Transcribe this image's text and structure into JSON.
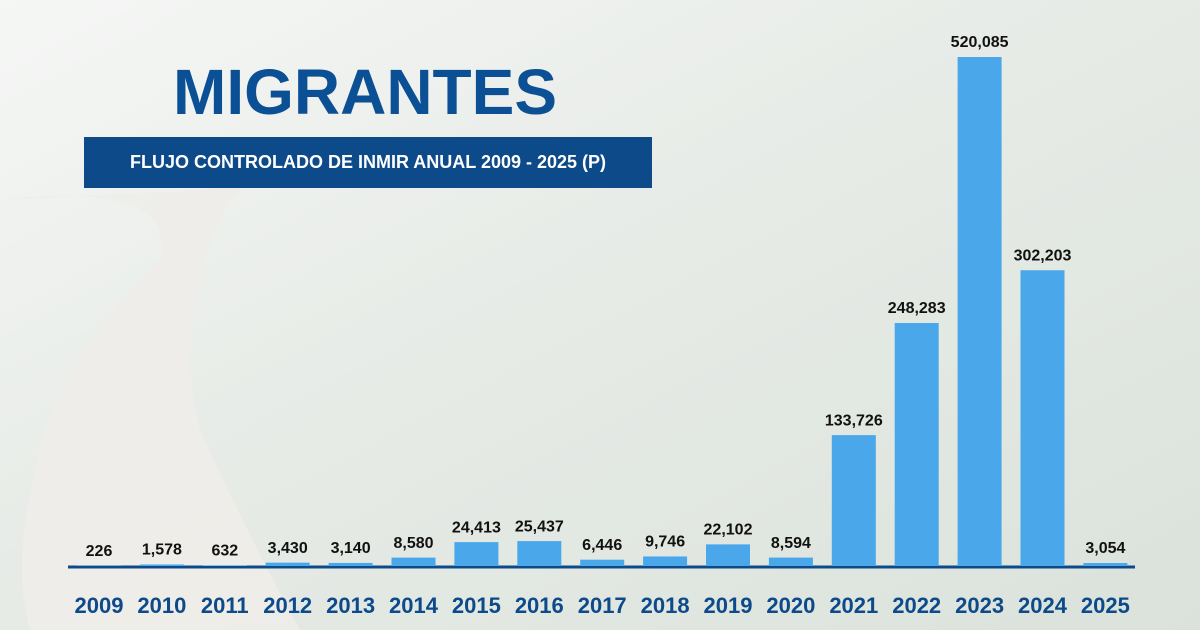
{
  "chart_data": {
    "type": "bar",
    "title": "MIGRANTES",
    "subtitle": "FLUJO CONTROLADO DE INMIR ANUAL 2009 - 2025 (P)",
    "categories": [
      "2009",
      "2010",
      "2011",
      "2012",
      "2013",
      "2014",
      "2015",
      "2016",
      "2017",
      "2018",
      "2019",
      "2020",
      "2021",
      "2022",
      "2023",
      "2024",
      "2025"
    ],
    "values": [
      226,
      1578,
      632,
      3430,
      3140,
      8580,
      24413,
      25437,
      6446,
      9746,
      22102,
      8594,
      133726,
      248283,
      520085,
      302203,
      3054
    ],
    "value_labels": [
      "226",
      "1,578",
      "632",
      "3,430",
      "3,140",
      "8,580",
      "24,413",
      "25,437",
      "6,446",
      "9,746",
      "22,102",
      "8,594",
      "133,726",
      "248,283",
      "520,085",
      "302,203",
      "3,054"
    ],
    "color": "#4aa8ea"
  }
}
